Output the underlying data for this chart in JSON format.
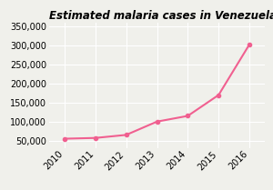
{
  "title": "Estimated malaria cases in Venezuela",
  "years": [
    2010,
    2011,
    2012,
    2013,
    2014,
    2015,
    2016
  ],
  "values": [
    55000,
    57000,
    65000,
    100000,
    115000,
    170000,
    303000
  ],
  "line_color": "#f06090",
  "marker": "o",
  "marker_size": 3,
  "ylim": [
    30000,
    360000
  ],
  "yticks": [
    50000,
    100000,
    150000,
    200000,
    250000,
    300000,
    350000
  ],
  "background_color": "#f0f0eb",
  "grid_color": "#ffffff",
  "title_fontsize": 8.5,
  "tick_fontsize": 7,
  "linewidth": 1.5
}
